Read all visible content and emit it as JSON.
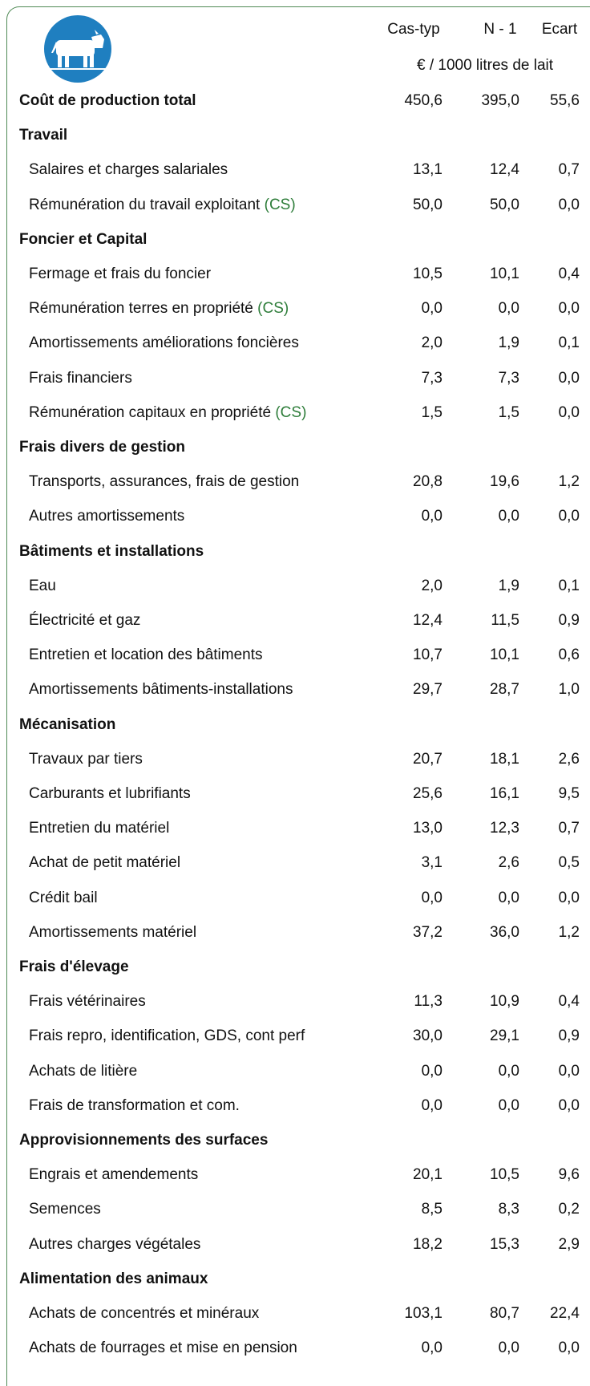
{
  "header": {
    "columns": [
      "Cas-typ",
      "N - 1",
      "Ecart"
    ],
    "unit": "€ / 1000 litres de lait"
  },
  "total": {
    "label": "Coût de production total",
    "values": [
      "450,6",
      "395,0",
      "55,6"
    ]
  },
  "sections": [
    {
      "title": "Travail",
      "items": [
        {
          "label": "Salaires et charges salariales",
          "values": [
            "13,1",
            "12,4",
            "0,7"
          ]
        },
        {
          "label": "Rémunération du travail exploitant",
          "note": "(CS)",
          "values": [
            "50,0",
            "50,0",
            "0,0"
          ]
        }
      ]
    },
    {
      "title": "Foncier et Capital",
      "items": [
        {
          "label": "Fermage et frais du foncier",
          "values": [
            "10,5",
            "10,1",
            "0,4"
          ]
        },
        {
          "label": "Rémunération terres en propriété",
          "note": "(CS)",
          "values": [
            "0,0",
            "0,0",
            "0,0"
          ]
        },
        {
          "label": "Amortissements améliorations foncières",
          "values": [
            "2,0",
            "1,9",
            "0,1"
          ]
        },
        {
          "label": "Frais financiers",
          "values": [
            "7,3",
            "7,3",
            "0,0"
          ]
        },
        {
          "label": "Rémunération capitaux en propriété",
          "note": "(CS)",
          "values": [
            "1,5",
            "1,5",
            "0,0"
          ]
        }
      ]
    },
    {
      "title": "Frais divers de gestion",
      "items": [
        {
          "label": "Transports, assurances, frais de gestion",
          "values": [
            "20,8",
            "19,6",
            "1,2"
          ]
        },
        {
          "label": "Autres amortissements",
          "values": [
            "0,0",
            "0,0",
            "0,0"
          ]
        }
      ]
    },
    {
      "title": "Bâtiments et installations",
      "items": [
        {
          "label": "Eau",
          "values": [
            "2,0",
            "1,9",
            "0,1"
          ]
        },
        {
          "label": "Électricité et gaz",
          "values": [
            "12,4",
            "11,5",
            "0,9"
          ]
        },
        {
          "label": "Entretien et location des bâtiments",
          "values": [
            "10,7",
            "10,1",
            "0,6"
          ]
        },
        {
          "label": "Amortissements bâtiments-installations",
          "values": [
            "29,7",
            "28,7",
            "1,0"
          ]
        }
      ]
    },
    {
      "title": "Mécanisation",
      "items": [
        {
          "label": "Travaux par tiers",
          "values": [
            "20,7",
            "18,1",
            "2,6"
          ]
        },
        {
          "label": "Carburants et lubrifiants",
          "values": [
            "25,6",
            "16,1",
            "9,5"
          ]
        },
        {
          "label": "Entretien du matériel",
          "values": [
            "13,0",
            "12,3",
            "0,7"
          ]
        },
        {
          "label": "Achat de petit matériel",
          "values": [
            "3,1",
            "2,6",
            "0,5"
          ]
        },
        {
          "label": "Crédit bail",
          "values": [
            "0,0",
            "0,0",
            "0,0"
          ]
        },
        {
          "label": "Amortissements matériel",
          "values": [
            "37,2",
            "36,0",
            "1,2"
          ]
        }
      ]
    },
    {
      "title": "Frais d'élevage",
      "items": [
        {
          "label": "Frais vétérinaires",
          "values": [
            "11,3",
            "10,9",
            "0,4"
          ]
        },
        {
          "label": "Frais repro, identification, GDS, cont perf",
          "values": [
            "30,0",
            "29,1",
            "0,9"
          ]
        },
        {
          "label": "Achats de litière",
          "values": [
            "0,0",
            "0,0",
            "0,0"
          ]
        },
        {
          "label": "Frais de transformation et com.",
          "values": [
            "0,0",
            "0,0",
            "0,0"
          ]
        }
      ]
    },
    {
      "title": "Approvisionnements des surfaces",
      "items": [
        {
          "label": "Engrais et amendements",
          "values": [
            "20,1",
            "10,5",
            "9,6"
          ]
        },
        {
          "label": "Semences",
          "values": [
            "8,5",
            "8,3",
            "0,2"
          ]
        },
        {
          "label": "Autres charges végétales",
          "values": [
            "18,2",
            "15,3",
            "2,9"
          ]
        }
      ]
    },
    {
      "title": "Alimentation des animaux",
      "items": [
        {
          "label": "Achats de concentrés et minéraux",
          "values": [
            "103,1",
            "80,7",
            "22,4"
          ]
        },
        {
          "label": "Achats de fourrages et mise en pension",
          "values": [
            "0,0",
            "0,0",
            "0,0"
          ]
        }
      ]
    }
  ]
}
